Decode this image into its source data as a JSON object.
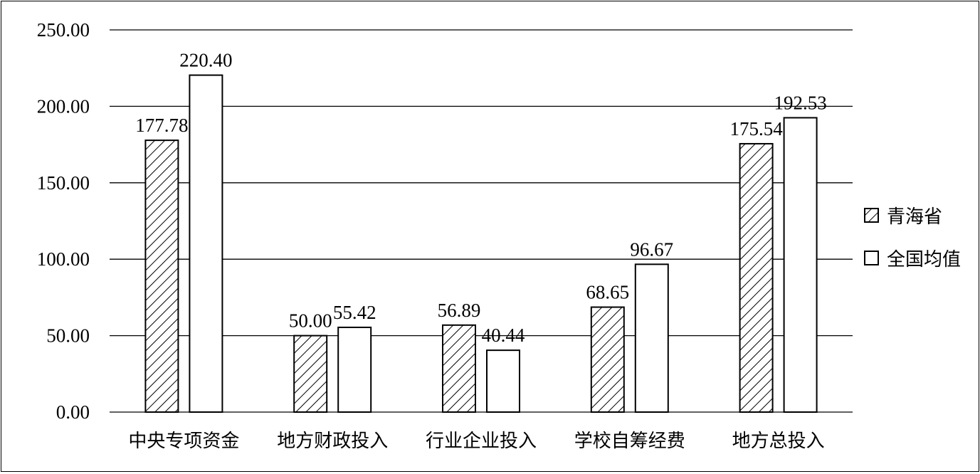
{
  "chart_data": {
    "type": "bar",
    "categories": [
      "中央专项资金",
      "地方财政投入",
      "行业企业投入",
      "学校自筹经费",
      "地方总投入"
    ],
    "series": [
      {
        "name": "青海省",
        "values": [
          177.78,
          50.0,
          56.89,
          68.65,
          175.54
        ],
        "labels": [
          "177.78",
          "50.00",
          "56.89",
          "68.65",
          "175.54"
        ],
        "pattern": "hatch"
      },
      {
        "name": "全国均值",
        "values": [
          220.4,
          55.42,
          40.44,
          96.67,
          192.53
        ],
        "labels": [
          "220.40",
          "55.42",
          "40.44",
          "96.67",
          "192.53"
        ],
        "pattern": "solid-white"
      }
    ],
    "y_ticks": [
      "0.00",
      "50.00",
      "100.00",
      "150.00",
      "200.00",
      "250.00"
    ],
    "ylim": [
      0,
      250
    ],
    "grid": true,
    "legend_position": "right",
    "colors": {
      "stroke": "#000000",
      "fill": "#ffffff"
    }
  }
}
